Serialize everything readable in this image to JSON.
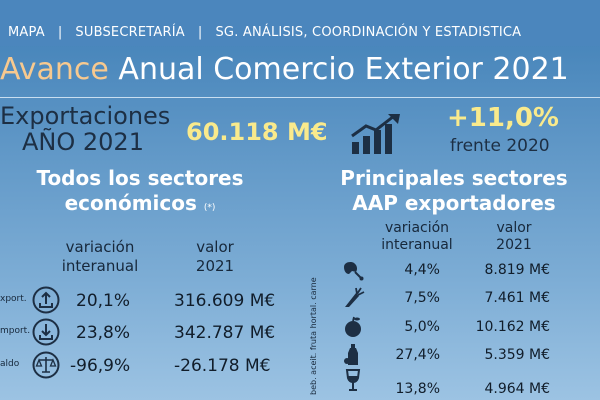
{
  "header": {
    "nav": [
      "MAPA",
      "SUBSECRETARÍA",
      "SG. ANÁLISIS, COORDINACIÓN Y ESTADISTICA"
    ],
    "title_accent": "Avance",
    "title_rest": "Anual  Comercio Exterior 2021"
  },
  "summary": {
    "label_line1": "Exportaciones",
    "label_line2": "AÑO 2021",
    "total": "60.118 M€",
    "change": "+11,0%",
    "change_note": "frente 2020",
    "icon": "trend-up-chart-icon"
  },
  "left_panel": {
    "heading_line1": "Todos los sectores",
    "heading_line2": "económicos",
    "heading_note": "(*)",
    "col_variation_1": "variación",
    "col_variation_2": "interanual",
    "col_value_1": "valor",
    "col_value_2": "2021",
    "rows": [
      {
        "label": "xport.",
        "variation": "20,1%",
        "value": "316.609 M€",
        "icon": "export-upload-icon"
      },
      {
        "label": "mport.",
        "variation": "23,8%",
        "value": "342.787 M€",
        "icon": "import-download-icon"
      },
      {
        "label": "aldo",
        "variation": "-96,9%",
        "value": "-26.178 M€",
        "icon": "balance-scale-icon"
      }
    ]
  },
  "right_panel": {
    "heading_line1": "Principales sectores",
    "heading_line2": "AAP exportadores",
    "col_variation_1": "variación",
    "col_variation_2": "interanual",
    "col_value_1": "valor",
    "col_value_2": "2021",
    "sector_labels": "beb.  aceit.  fruta  hortal.  carne",
    "rows": [
      {
        "variation": "4,4%",
        "value": "8.819 M€",
        "icon": "meat-leg-icon"
      },
      {
        "variation": "7,5%",
        "value": "7.461 M€",
        "icon": "carrot-icon"
      },
      {
        "variation": "5,0%",
        "value": "10.162 M€",
        "icon": "fruit-icon"
      },
      {
        "variation": "27,4%",
        "value": "5.359 M€",
        "icon": "oil-bottle-icon"
      },
      {
        "variation": "13,8%",
        "value": "4.964 M€",
        "icon": "wine-glass-icon"
      }
    ]
  },
  "colors": {
    "background_top": "#3f7fb6",
    "background_bottom": "#9cc3e3",
    "accent_orange": "#f7c98f",
    "highlight_yellow": "#f9ea8c",
    "dark_text": "#1d2f44"
  }
}
